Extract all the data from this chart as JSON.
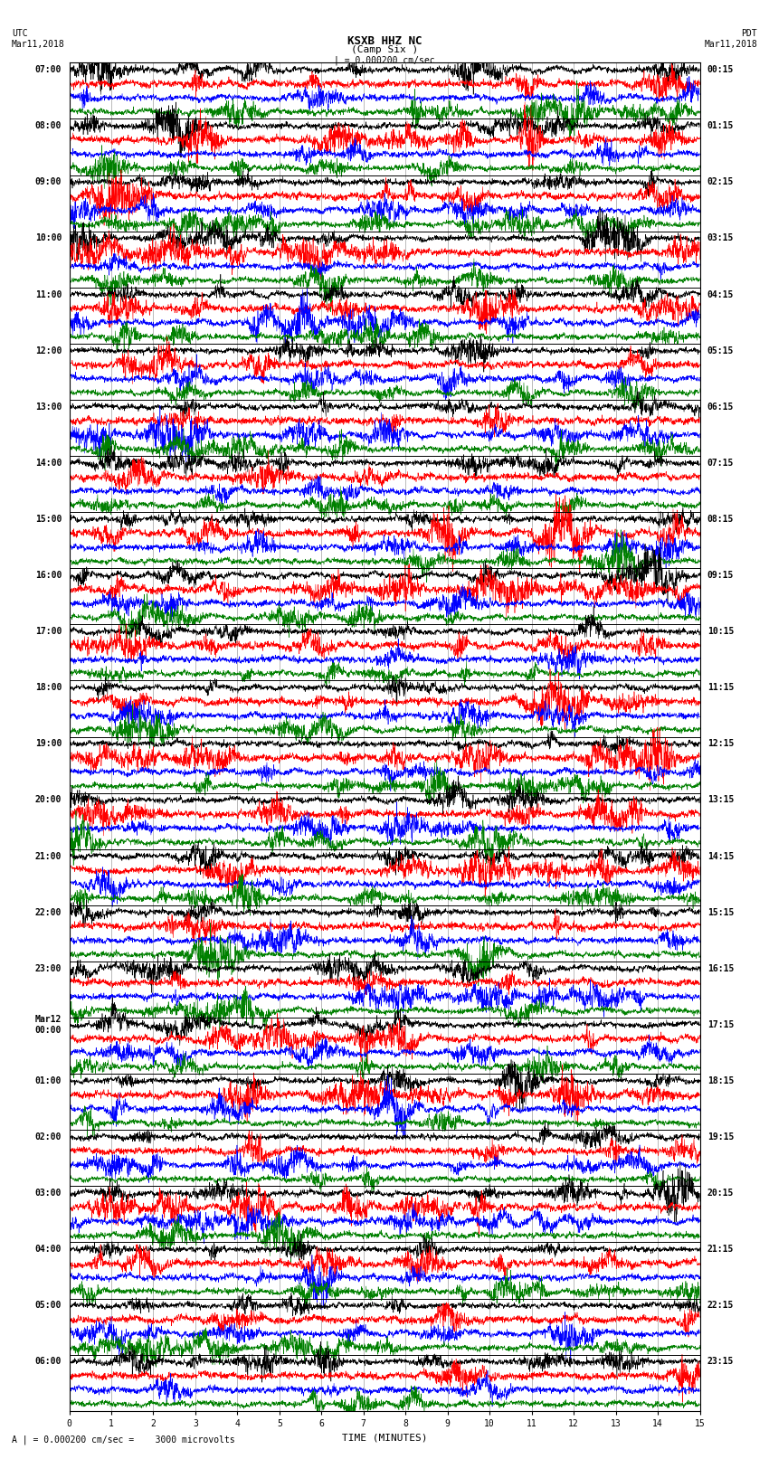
{
  "title": "KSXB HHZ NC",
  "subtitle": "(Camp Six )",
  "scale_label": "| = 0.000200 cm/sec",
  "footer_label": "A | = 0.000200 cm/sec =    3000 microvolts",
  "xlabel": "TIME (MINUTES)",
  "bg_color": "#ffffff",
  "trace_colors": [
    "#000000",
    "#ff0000",
    "#0000ff",
    "#008000"
  ],
  "left_times": [
    "07:00",
    "08:00",
    "09:00",
    "10:00",
    "11:00",
    "12:00",
    "13:00",
    "14:00",
    "15:00",
    "16:00",
    "17:00",
    "18:00",
    "19:00",
    "20:00",
    "21:00",
    "22:00",
    "23:00",
    "Mar12\n00:00",
    "01:00",
    "02:00",
    "03:00",
    "04:00",
    "05:00",
    "06:00"
  ],
  "right_times": [
    "00:15",
    "01:15",
    "02:15",
    "03:15",
    "04:15",
    "05:15",
    "06:15",
    "07:15",
    "08:15",
    "09:15",
    "10:15",
    "11:15",
    "12:15",
    "13:15",
    "14:15",
    "15:15",
    "16:15",
    "17:15",
    "18:15",
    "19:15",
    "20:15",
    "21:15",
    "22:15",
    "23:15"
  ],
  "num_rows": 24,
  "traces_per_row": 4,
  "x_min": 0,
  "x_max": 15,
  "x_ticks": [
    0,
    1,
    2,
    3,
    4,
    5,
    6,
    7,
    8,
    9,
    10,
    11,
    12,
    13,
    14,
    15
  ],
  "grid_color": "#888888",
  "tick_fontsize": 7,
  "label_fontsize": 7,
  "title_fontsize": 9
}
